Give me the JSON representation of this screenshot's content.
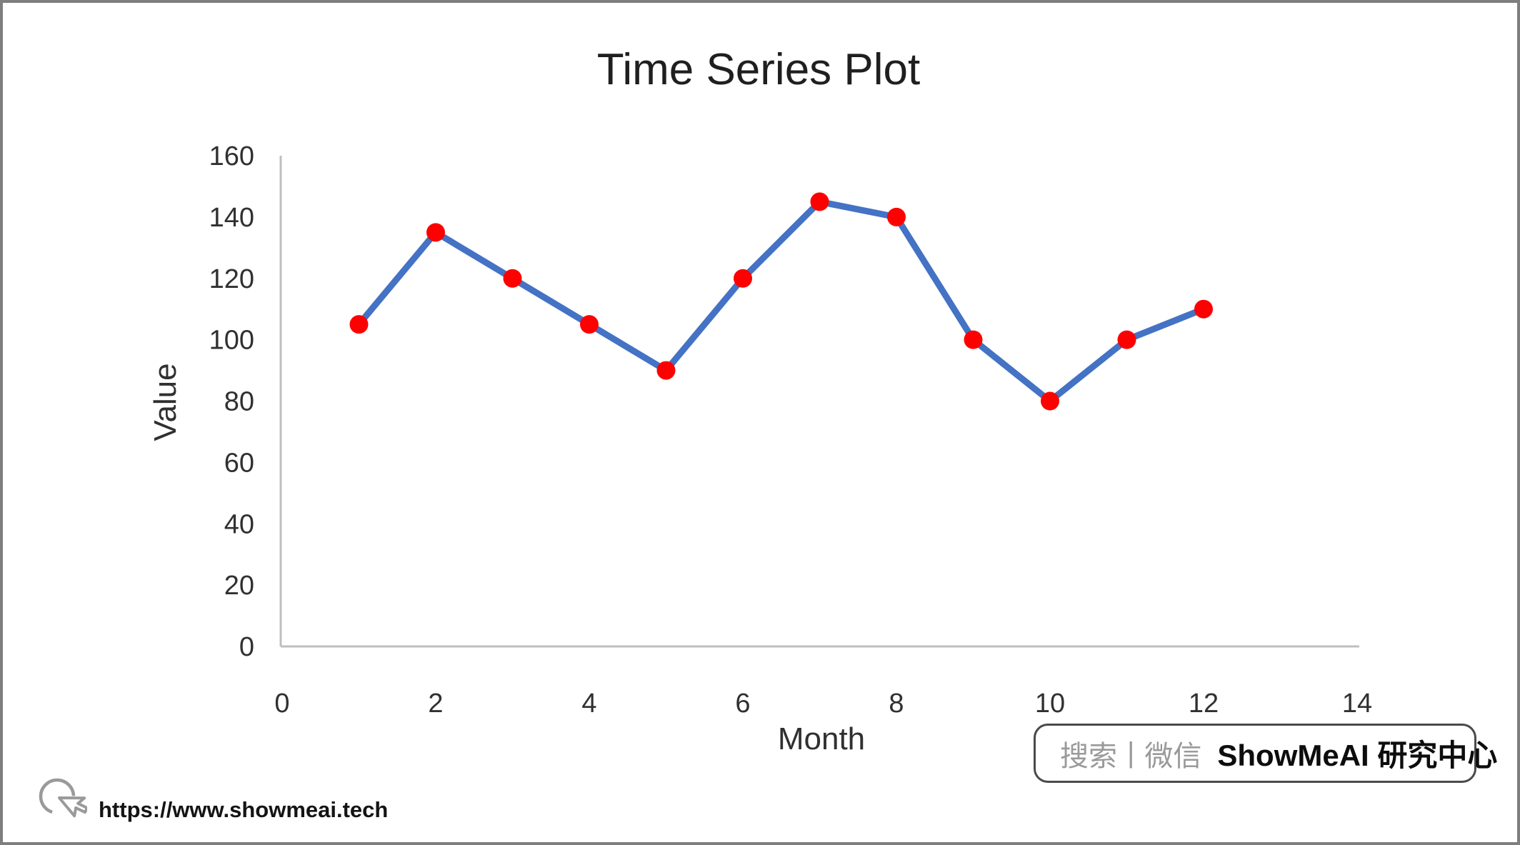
{
  "chart_data": {
    "type": "line",
    "title": "Time Series Plot",
    "xlabel": "Month",
    "ylabel": "Value",
    "x": [
      1,
      2,
      3,
      4,
      5,
      6,
      7,
      8,
      9,
      10,
      11,
      12
    ],
    "values": [
      105,
      135,
      120,
      105,
      90,
      120,
      145,
      140,
      100,
      80,
      100,
      110
    ],
    "xlim": [
      0,
      14
    ],
    "ylim": [
      0,
      160
    ],
    "xticks": [
      0,
      2,
      4,
      6,
      8,
      10,
      12,
      14
    ],
    "yticks": [
      0,
      20,
      40,
      60,
      80,
      100,
      120,
      140,
      160
    ],
    "grid": false,
    "legend": "none",
    "colors": {
      "line": "#4472C4",
      "marker": "#FF0000",
      "axis": "#BFBFBF",
      "tick_text": "#303030"
    }
  },
  "footer": {
    "url": "https://www.showmeai.tech"
  },
  "watermark": {
    "search_text": "搜索",
    "separator": "|",
    "channel_text": "微信",
    "brand_text": "ShowMeAI 研究中心"
  }
}
